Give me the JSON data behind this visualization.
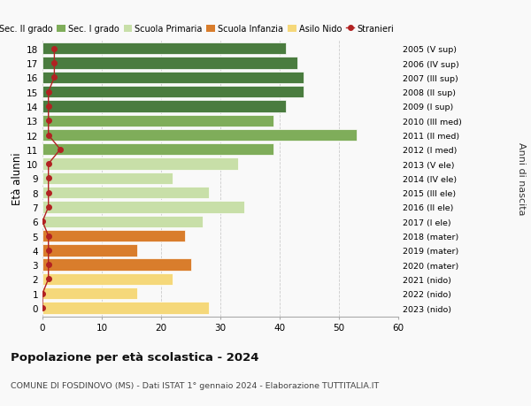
{
  "ages": [
    0,
    1,
    2,
    3,
    4,
    5,
    6,
    7,
    8,
    9,
    10,
    11,
    12,
    13,
    14,
    15,
    16,
    17,
    18
  ],
  "values": [
    28,
    16,
    22,
    25,
    16,
    24,
    27,
    34,
    28,
    22,
    33,
    39,
    53,
    39,
    41,
    44,
    44,
    43,
    41
  ],
  "stranieri": [
    0,
    0,
    1,
    1,
    1,
    1,
    0,
    1,
    1,
    1,
    1,
    3,
    1,
    1,
    1,
    1,
    2,
    2,
    2
  ],
  "right_labels": [
    "2023 (nido)",
    "2022 (nido)",
    "2021 (nido)",
    "2020 (mater)",
    "2019 (mater)",
    "2018 (mater)",
    "2017 (I ele)",
    "2016 (II ele)",
    "2015 (III ele)",
    "2014 (IV ele)",
    "2013 (V ele)",
    "2012 (I med)",
    "2011 (II med)",
    "2010 (III med)",
    "2009 (I sup)",
    "2008 (II sup)",
    "2007 (III sup)",
    "2006 (IV sup)",
    "2005 (V sup)"
  ],
  "colors": {
    "Sec. II grado": "#4a7c3f",
    "Sec. I grado": "#7fad5a",
    "Scuola Primaria": "#c8dfa8",
    "Scuola Infanzia": "#d97d2c",
    "Asilo Nido": "#f5d87a",
    "Stranieri": "#b22222"
  },
  "bar_colors": [
    "#f5d87a",
    "#f5d87a",
    "#f5d87a",
    "#d97d2c",
    "#d97d2c",
    "#d97d2c",
    "#c8dfa8",
    "#c8dfa8",
    "#c8dfa8",
    "#c8dfa8",
    "#c8dfa8",
    "#7fad5a",
    "#7fad5a",
    "#7fad5a",
    "#4a7c3f",
    "#4a7c3f",
    "#4a7c3f",
    "#4a7c3f",
    "#4a7c3f"
  ],
  "title": "Popolazione per età scolastica - 2024",
  "subtitle": "COMUNE DI FOSDINOVO (MS) - Dati ISTAT 1° gennaio 2024 - Elaborazione TUTTITALIA.IT",
  "ylabel": "Età alunni",
  "right_ylabel": "Anni di nascita",
  "xlim": [
    0,
    60
  ],
  "xticks": [
    0,
    10,
    20,
    30,
    40,
    50,
    60
  ],
  "legend_labels": [
    "Sec. II grado",
    "Sec. I grado",
    "Scuola Primaria",
    "Scuola Infanzia",
    "Asilo Nido",
    "Stranieri"
  ],
  "legend_colors": [
    "#4a7c3f",
    "#7fad5a",
    "#c8dfa8",
    "#d97d2c",
    "#f5d87a",
    "#b22222"
  ],
  "bg_color": "#f9f9f9",
  "grid_color": "#cccccc"
}
